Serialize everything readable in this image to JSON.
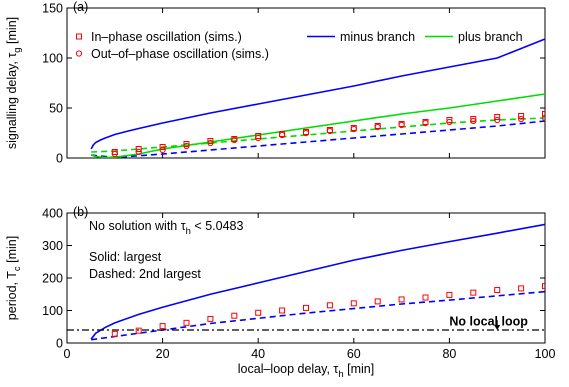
{
  "chart_data": [
    {
      "type": "line",
      "panel_label": "(a)",
      "xlabel": "",
      "ylabel": "signalling delay, τ",
      "ylabel_sub": "g",
      "ylabel_suffix": " [min]",
      "xlim": [
        0,
        100
      ],
      "ylim": [
        0,
        150
      ],
      "xticks": [
        0,
        20,
        40,
        60,
        80,
        100
      ],
      "yticks": [
        0,
        50,
        100,
        150
      ],
      "show_xtick_labels": false,
      "grid": false,
      "legend": {
        "placement": "top",
        "entries": [
          {
            "label": "In–phase oscillation (sims.)",
            "marker": "square",
            "color": "#ff0000"
          },
          {
            "label": "Out–of–phase oscillation (sims.)",
            "marker": "circle",
            "color": "#ff0000"
          },
          {
            "label": "minus branch",
            "color": "#0000ff"
          },
          {
            "label": "plus branch",
            "color": "#00dd00"
          }
        ]
      },
      "series": [
        {
          "name": "minus branch",
          "color": "#0000ff",
          "style": "solid",
          "x": [
            5.05,
            5.5,
            6,
            7,
            8,
            10,
            12,
            15,
            20,
            25,
            30,
            40,
            50,
            60,
            70,
            80,
            90,
            100
          ],
          "y": [
            9,
            13,
            15.5,
            18,
            20,
            23.5,
            26,
            29.5,
            35,
            40,
            45,
            54,
            63,
            72,
            82,
            91,
            100,
            119
          ]
        },
        {
          "color": "#0000ff",
          "style": "dashed",
          "x": [
            5.05,
            10,
            20,
            30,
            40,
            50,
            60,
            70,
            80,
            90,
            100
          ],
          "y": [
            3,
            0.5,
            4,
            8,
            12,
            16,
            20,
            24,
            28,
            32,
            37
          ]
        },
        {
          "name": "plus branch",
          "color": "#00dd00",
          "style": "solid",
          "x": [
            5.05,
            6,
            8,
            10,
            15,
            20,
            30,
            40,
            50,
            60,
            70,
            80,
            90,
            100
          ],
          "y": [
            3,
            1.5,
            0.5,
            0.8,
            4,
            9,
            16,
            23,
            30,
            37,
            44,
            50,
            57,
            64
          ]
        },
        {
          "color": "#00dd00",
          "style": "dashed",
          "x": [
            5.05,
            10,
            20,
            30,
            40,
            50,
            60,
            70,
            80,
            90,
            100
          ],
          "y": [
            6,
            7,
            11,
            15,
            19,
            23,
            27,
            31,
            35,
            38,
            40
          ]
        },
        {
          "name": "In–phase oscillation (sims.)",
          "color": "#ff0000",
          "marker": "square",
          "x": [
            10,
            15,
            20,
            25,
            30,
            35,
            40,
            45,
            50,
            55,
            60,
            65,
            70,
            75,
            80,
            85,
            90,
            95,
            100
          ],
          "y": [
            6,
            9,
            11,
            14,
            17,
            19,
            22,
            24,
            26,
            28,
            30,
            32,
            34,
            36,
            38,
            39,
            41,
            42,
            44
          ]
        },
        {
          "name": "Out–of–phase oscillation (sims.)",
          "color": "#ff0000",
          "marker": "circle",
          "x": [
            10,
            15,
            20,
            25,
            30,
            35,
            40,
            45,
            50,
            55,
            60,
            65,
            70,
            75,
            80,
            85,
            90,
            95,
            100
          ],
          "y": [
            4,
            6,
            8,
            12,
            15,
            18,
            20,
            23,
            25,
            27,
            29,
            31,
            33,
            35,
            36,
            37,
            38,
            39,
            40
          ]
        }
      ]
    },
    {
      "type": "line",
      "panel_label": "(b)",
      "xlabel": "local–loop delay, τ",
      "xlabel_sub": "h",
      "xlabel_suffix": " [min]",
      "ylabel": "period, T",
      "ylabel_sub": "c",
      "ylabel_suffix": " [min]",
      "xlim": [
        0,
        100
      ],
      "ylim": [
        0,
        400
      ],
      "xticks": [
        0,
        20,
        40,
        60,
        80,
        100
      ],
      "yticks": [
        0,
        100,
        200,
        300,
        400
      ],
      "grid": false,
      "annotations": {
        "no_solution": "No solution with τ",
        "no_solution_sub": "h",
        "no_solution_suffix": " < 5.0483",
        "solid": "Solid: largest",
        "dashed": "Dashed: 2nd largest",
        "no_local_loop": "No local loop",
        "arrow_x": 90,
        "arrow_y_from": 70,
        "arrow_y_to": 40
      },
      "series": [
        {
          "color": "#0000ff",
          "style": "solid",
          "x": [
            5.05,
            6,
            8,
            10,
            15,
            20,
            30,
            40,
            50,
            60,
            70,
            80,
            90,
            100
          ],
          "y": [
            12,
            30,
            48,
            62,
            88,
            110,
            150,
            185,
            220,
            255,
            285,
            312,
            338,
            365
          ]
        },
        {
          "color": "#0000ff",
          "style": "dashed",
          "x": [
            5.05,
            10,
            20,
            30,
            40,
            50,
            60,
            70,
            80,
            90,
            100
          ],
          "y": [
            10,
            20,
            40,
            60,
            76,
            92,
            106,
            120,
            132,
            145,
            158
          ]
        },
        {
          "color": "#000000",
          "style": "dashdot",
          "x": [
            0,
            100
          ],
          "y": [
            40,
            40
          ]
        },
        {
          "color": "#ff0000",
          "marker": "square",
          "x": [
            10,
            15,
            20,
            25,
            30,
            35,
            40,
            45,
            50,
            55,
            60,
            65,
            70,
            75,
            80,
            85,
            90,
            95,
            100
          ],
          "y": [
            28,
            38,
            52,
            62,
            74,
            84,
            93,
            100,
            108,
            116,
            122,
            128,
            134,
            140,
            148,
            155,
            163,
            168,
            175
          ]
        }
      ]
    }
  ]
}
